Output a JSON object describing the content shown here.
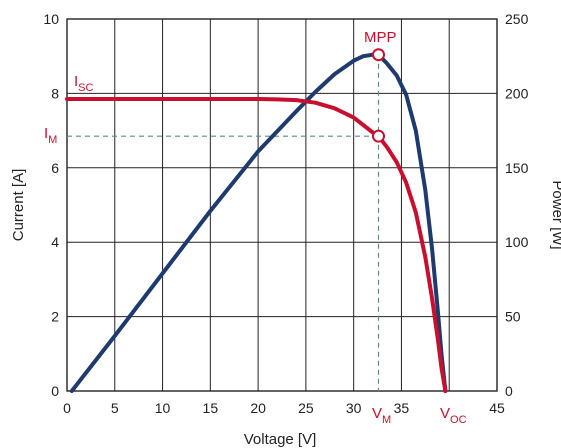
{
  "chart_data": {
    "type": "line",
    "xlabel": "Voltage [V]",
    "ylabel": "Current [A]",
    "y2label": "Power [W]",
    "xlim": [
      0,
      45
    ],
    "ylim": [
      0,
      10
    ],
    "y2lim": [
      0,
      250
    ],
    "xticks": [
      0,
      5,
      10,
      15,
      20,
      25,
      30,
      35,
      45
    ],
    "yticks": [
      0,
      2,
      4,
      6,
      8,
      10
    ],
    "y2ticks": [
      0,
      50,
      100,
      150,
      200,
      250
    ],
    "grid": true,
    "series": [
      {
        "axis": "left",
        "color": "#c8102e",
        "x": [
          0,
          5,
          10,
          15,
          20,
          22,
          24,
          26,
          28,
          30,
          31,
          32,
          32.6,
          33.5,
          34.5,
          35.5,
          36.5,
          37.5,
          38.2,
          38.8,
          39.2,
          39.6
        ],
        "values": [
          7.85,
          7.85,
          7.85,
          7.85,
          7.85,
          7.84,
          7.82,
          7.75,
          7.6,
          7.35,
          7.15,
          6.95,
          6.85,
          6.55,
          6.15,
          5.6,
          4.8,
          3.6,
          2.5,
          1.4,
          0.6,
          0
        ]
      },
      {
        "axis": "right",
        "color": "#1e3a6e",
        "x": [
          0.5,
          5,
          10,
          15,
          20,
          24,
          26,
          28,
          30,
          31,
          32,
          32.6,
          33.5,
          34.5,
          35.5,
          36.5,
          37.5,
          38.2,
          38.8,
          39.2,
          39.6
        ],
        "values": [
          0,
          37,
          79,
          121,
          161,
          188,
          201,
          213,
          222,
          225,
          226,
          226,
          220,
          212,
          199,
          175,
          135,
          96,
          54,
          24,
          0
        ]
      }
    ],
    "annotations": {
      "isc": {
        "label": "I",
        "sub": "SC"
      },
      "im": {
        "label": "I",
        "sub": "M"
      },
      "vm": {
        "label": "V",
        "sub": "M"
      },
      "voc": {
        "label": "V",
        "sub": "OC"
      },
      "mpp": {
        "label": "MPP"
      }
    },
    "points": {
      "mpp": {
        "x": 32.6,
        "y2": 226
      },
      "im": {
        "x": 32.6,
        "y": 6.85
      }
    }
  },
  "colors": {
    "current": "#c8102e",
    "power": "#1e3a6e",
    "grid": "#222222",
    "guide": "#5a8a8a"
  }
}
